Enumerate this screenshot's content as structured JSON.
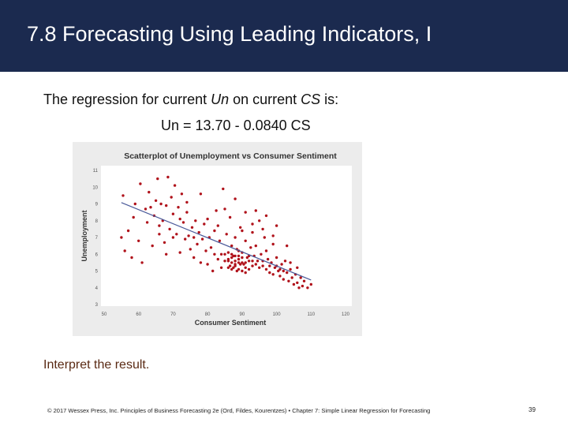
{
  "slide": {
    "title": "7.8 Forecasting Using Leading Indicators, I",
    "intro_prefix": "The regression for current ",
    "intro_var1": "Un",
    "intro_middle": " on current ",
    "intro_var2": "CS",
    "intro_suffix": " is:",
    "equation": "Un = 13.70 - 0.0840 CS",
    "interpret": "Interpret the result.",
    "footer": "© 2017 Wessex Press, Inc. Principles of Business Forecasting 2e (Ord, Fildes, Kourentzes) • Chapter 7: Simple Linear Regression for Forecasting",
    "page_number": "39"
  },
  "colors": {
    "title_bar": "#1b2a4f",
    "points": "#b0121b",
    "fit_line": "#4a5a9a",
    "interpret_text": "#5a2a14"
  },
  "chart_data": {
    "type": "scatter",
    "title": "Scatterplot of Unemployment vs Consumer Sentiment",
    "xlabel": "Consumer Sentiment",
    "ylabel": "Unemployment",
    "xlim": [
      50,
      120
    ],
    "ylim": [
      3,
      11
    ],
    "x_ticks": [
      "50",
      "60",
      "70",
      "80",
      "90",
      "100",
      "110",
      "120"
    ],
    "y_ticks": [
      "3",
      "4",
      "5",
      "6",
      "7",
      "8",
      "9",
      "10",
      "11"
    ],
    "fit_line": {
      "intercept": 13.7,
      "slope": -0.084
    },
    "points": [
      [
        55,
        7.0
      ],
      [
        55.5,
        9.5
      ],
      [
        56,
        6.2
      ],
      [
        58,
        5.8
      ],
      [
        58.5,
        8.2
      ],
      [
        59,
        9.0
      ],
      [
        60,
        6.8
      ],
      [
        60.5,
        10.2
      ],
      [
        61,
        5.5
      ],
      [
        62,
        8.7
      ],
      [
        62.5,
        7.9
      ],
      [
        63,
        9.7
      ],
      [
        63.5,
        8.8
      ],
      [
        64,
        6.5
      ],
      [
        64.5,
        8.3
      ],
      [
        65,
        9.2
      ],
      [
        65.5,
        10.5
      ],
      [
        66,
        7.7
      ],
      [
        66.5,
        9.0
      ],
      [
        67,
        8.0
      ],
      [
        67.5,
        6.7
      ],
      [
        68,
        8.9
      ],
      [
        68.5,
        10.6
      ],
      [
        69,
        7.5
      ],
      [
        69.5,
        9.4
      ],
      [
        70,
        8.4
      ],
      [
        70.5,
        10.1
      ],
      [
        71,
        7.2
      ],
      [
        71.5,
        8.8
      ],
      [
        72,
        6.1
      ],
      [
        72.5,
        9.6
      ],
      [
        73,
        7.9
      ],
      [
        73.5,
        6.9
      ],
      [
        74,
        8.5
      ],
      [
        74.5,
        7.1
      ],
      [
        75,
        6.3
      ],
      [
        75.5,
        7.6
      ],
      [
        76,
        5.8
      ],
      [
        76.5,
        8.0
      ],
      [
        77,
        6.6
      ],
      [
        77.5,
        7.3
      ],
      [
        78,
        5.5
      ],
      [
        78.5,
        6.9
      ],
      [
        79,
        7.8
      ],
      [
        79.5,
        6.2
      ],
      [
        80,
        5.4
      ],
      [
        80.5,
        7.0
      ],
      [
        81,
        6.4
      ],
      [
        81.5,
        5.0
      ],
      [
        82,
        7.4
      ],
      [
        82.5,
        8.6
      ],
      [
        83,
        5.7
      ],
      [
        83.5,
        6.8
      ],
      [
        84,
        5.2
      ],
      [
        84.5,
        9.9
      ],
      [
        85,
        6.0
      ],
      [
        85.5,
        7.2
      ],
      [
        86,
        5.6
      ],
      [
        86.5,
        8.2
      ],
      [
        87,
        6.5
      ],
      [
        87.5,
        5.9
      ],
      [
        88,
        7.0
      ],
      [
        88.5,
        6.3
      ],
      [
        89,
        5.5
      ],
      [
        89.5,
        7.6
      ],
      [
        90,
        6.1
      ],
      [
        90.5,
        5.4
      ],
      [
        91,
        6.8
      ],
      [
        91.5,
        5.8
      ],
      [
        92,
        5.1
      ],
      [
        92.5,
        6.4
      ],
      [
        93,
        7.3
      ],
      [
        93.5,
        5.9
      ],
      [
        94,
        6.5
      ],
      [
        94.5,
        5.6
      ],
      [
        95,
        8.0
      ],
      [
        95.5,
        6.0
      ],
      [
        96,
        5.3
      ],
      [
        96.5,
        7.0
      ],
      [
        97,
        6.2
      ],
      [
        97.5,
        5.7
      ],
      [
        98,
        4.9
      ],
      [
        98.5,
        5.5
      ],
      [
        99,
        6.6
      ],
      [
        99.5,
        5.2
      ],
      [
        100,
        5.8
      ],
      [
        100.5,
        5.0
      ],
      [
        101,
        4.7
      ],
      [
        101.5,
        5.4
      ],
      [
        102,
        4.5
      ],
      [
        102.5,
        5.6
      ],
      [
        103,
        4.9
      ],
      [
        103.5,
        4.4
      ],
      [
        104,
        5.1
      ],
      [
        104.5,
        4.6
      ],
      [
        105,
        4.2
      ],
      [
        105.5,
        4.8
      ],
      [
        106,
        4.3
      ],
      [
        106.5,
        4.0
      ],
      [
        107,
        4.6
      ],
      [
        107.5,
        4.1
      ],
      [
        108,
        4.4
      ],
      [
        109,
        4.0
      ],
      [
        110,
        4.2
      ],
      [
        86,
        5.7
      ],
      [
        86.5,
        5.3
      ],
      [
        87,
        5.8
      ],
      [
        87.5,
        5.2
      ],
      [
        88,
        5.6
      ],
      [
        88.5,
        5.0
      ],
      [
        89,
        6.2
      ],
      [
        89.5,
        5.4
      ],
      [
        86,
        6.1
      ],
      [
        87,
        6.0
      ],
      [
        88,
        5.9
      ],
      [
        89,
        5.7
      ],
      [
        90,
        5.5
      ],
      [
        91,
        5.2
      ],
      [
        92,
        5.6
      ],
      [
        93,
        5.3
      ],
      [
        87,
        5.5
      ],
      [
        88,
        5.4
      ],
      [
        89,
        5.9
      ],
      [
        90,
        5.8
      ],
      [
        91,
        5.5
      ],
      [
        92,
        5.9
      ],
      [
        93,
        5.6
      ],
      [
        94,
        5.4
      ],
      [
        84,
        6.0
      ],
      [
        85,
        5.6
      ],
      [
        86,
        5.2
      ],
      [
        87,
        5.1
      ],
      [
        88,
        5.3
      ],
      [
        89,
        5.1
      ],
      [
        90,
        5.0
      ],
      [
        91,
        4.9
      ],
      [
        95,
        5.2
      ],
      [
        96,
        5.6
      ],
      [
        97,
        5.1
      ],
      [
        98,
        5.3
      ],
      [
        99,
        4.8
      ],
      [
        100,
        5.3
      ],
      [
        101,
        5.1
      ],
      [
        102,
        5.0
      ],
      [
        57,
        7.4
      ],
      [
        66,
        7.2
      ],
      [
        68,
        6.0
      ],
      [
        70,
        7.0
      ],
      [
        72,
        8.1
      ],
      [
        74,
        9.1
      ],
      [
        76,
        7.0
      ],
      [
        78,
        9.6
      ],
      [
        80,
        8.1
      ],
      [
        82,
        6.0
      ],
      [
        83,
        7.7
      ],
      [
        85,
        8.7
      ],
      [
        88,
        9.3
      ],
      [
        90,
        7.4
      ],
      [
        91,
        8.5
      ],
      [
        93,
        7.8
      ],
      [
        94,
        8.6
      ],
      [
        96,
        7.5
      ],
      [
        97,
        8.3
      ],
      [
        99,
        7.1
      ],
      [
        100,
        7.7
      ],
      [
        103,
        6.5
      ],
      [
        104,
        5.5
      ],
      [
        106,
        5.2
      ]
    ]
  }
}
